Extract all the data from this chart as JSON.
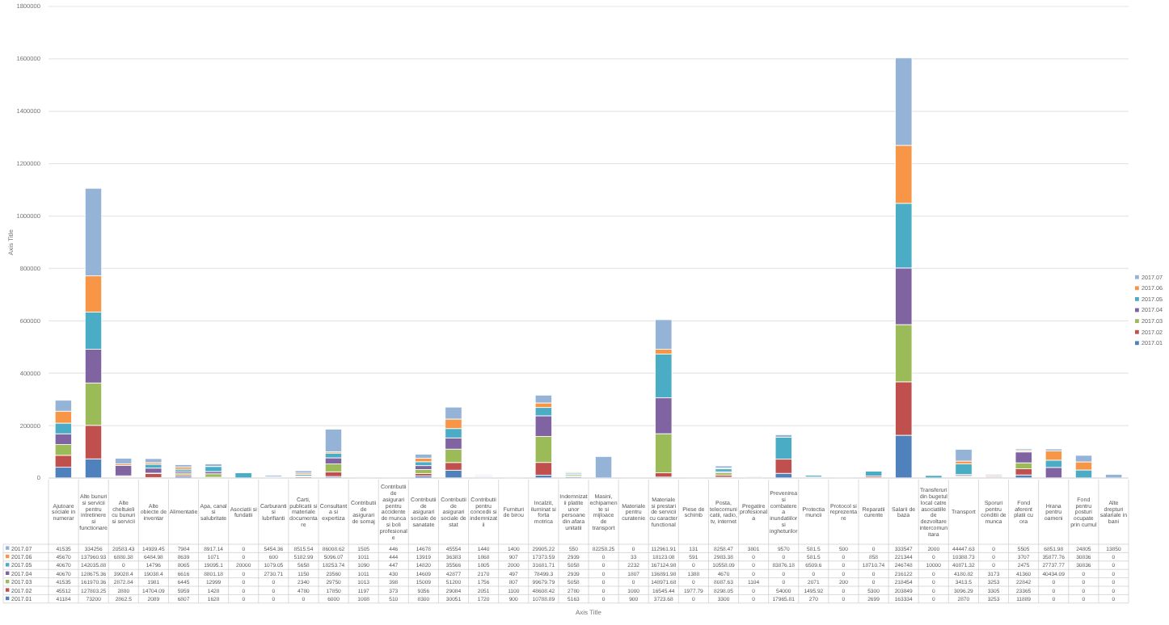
{
  "chart_data": {
    "type": "bar",
    "stacked": true,
    "ylabel": "Axis Title",
    "annotations": [
      "Axis Title"
    ],
    "ylim": [
      0,
      1800000
    ],
    "yticks": [
      0,
      200000,
      400000,
      600000,
      800000,
      1000000,
      1200000,
      1400000,
      1600000,
      1800000
    ],
    "grid": "y",
    "legend": "right",
    "data_labels": true,
    "categories": [
      "Ajutoare sociale in numerar",
      "Alte bunuri si servicii pentru intretinere si functionare",
      "Alte cheltuieli cu bunuri si servicii",
      "Alte obiecte de inventar",
      "Alimentatie",
      "Apa, canal si salubritate",
      "Asociatii si fundatii",
      "Carburanti si lubrifianti",
      "Carti, publicatii si materiale documentare",
      "Consultanta si expertiza",
      "Contributii de asigurari de somaj",
      "Contributii de asigurari pentru accidente de munca si boli profesionale",
      "Contributii de asigurari sociale de sanatate",
      "Contributii de asigurari sociale de stat",
      "Contributii pentru concedii si indemnizatii",
      "Furnituri de birou",
      "Incalzit, iluminat si forta motrica",
      "Indemnizatii platite unor persoane din afara unitatii",
      "Masini, echipamente si mijloace de transport",
      "Materiale pentru curatenie",
      "Materiale si prestari de servicii cu caracter functional",
      "Piese de schimb",
      "Posta, telecomunicatii, radio, tv, internet",
      "Pregatire profesionala",
      "Prevenirea si combaterea inundatiilor si ingheturilor",
      "Protectia muncii",
      "Protocol si reprezentare",
      "Reparatii curente",
      "Salarii de baza",
      "Transferuri din bugetul local catre asociatiile de dezvoltare intercomunitara",
      "Transport",
      "Sporuri pentru conditii de munca",
      "Fond aferent platii cu ora",
      "Hrana pentru oameni",
      "Fond pentru posturi ocupate prin cumul",
      "Alte drepturi salariale in bani"
    ],
    "series": [
      {
        "name": "2017.01",
        "color": "#4f81bd",
        "values": [
          41184,
          73200,
          2862.5,
          2089,
          6807,
          1628,
          0,
          0,
          0,
          6000,
          1008,
          510,
          8300,
          30051,
          1720,
          900,
          10788.89,
          5163,
          0,
          900,
          3723.68,
          0,
          3300,
          0,
          17965.81,
          270,
          0,
          2699,
          163334,
          0,
          2870,
          3253,
          11889,
          0,
          0,
          0
        ]
      },
      {
        "name": "2017.02",
        "color": "#c0504d",
        "values": [
          45512,
          127803.25,
          2880,
          14704.09,
          5959,
          1428,
          0,
          0,
          4780,
          17850,
          1197,
          373,
          9356,
          29084,
          2051,
          1100,
          48608.42,
          2780,
          0,
          1000,
          16545.44,
          1977.79,
          8298.05,
          0,
          54000,
          1495.92,
          0,
          5300,
          203849,
          0,
          3096.29,
          3305,
          23365,
          0,
          0,
          0
        ]
      },
      {
        "name": "2017.03",
        "color": "#9bbb59",
        "values": [
          41535,
          161970.36,
          2872.84,
          1981,
          6445,
          12999,
          0,
          0,
          2340,
          29750,
          1013,
          398,
          15009,
          51200,
          1756,
          807,
          99679.79,
          5058,
          0,
          0,
          148971.68,
          0,
          8087.63,
          1104,
          0,
          2071,
          200,
          0,
          218454,
          0,
          3413.5,
          3253,
          22842,
          0,
          0,
          0
        ]
      },
      {
        "name": "2017.04",
        "color": "#8064a2",
        "values": [
          40670,
          128675.36,
          39028.4,
          19038.4,
          6616,
          8801.18,
          0,
          2730.71,
          1150,
          23560,
          1011,
          430,
          14609,
          42877,
          2170,
          497,
          78499.3,
          2939,
          0,
          1807,
          136891.98,
          1388,
          4670,
          0,
          0,
          0,
          0,
          0,
          216122,
          0,
          4180.82,
          3173,
          41360,
          40434.09,
          0,
          0
        ]
      },
      {
        "name": "2017.05",
        "color": "#4bacc6",
        "values": [
          40670,
          142035.88,
          0,
          14796,
          8065,
          19095.1,
          20000,
          1079.05,
          5658,
          18253.74,
          1090,
          447,
          14820,
          35566,
          1805,
          2000,
          31681.71,
          5058,
          0,
          2232,
          167124.98,
          0,
          10558.09,
          0,
          83876.18,
          6509.6,
          0,
          18710.74,
          246748,
          10000,
          40871.32,
          0,
          2475,
          27737.77,
          30836,
          0
        ]
      },
      {
        "name": "2017.06",
        "color": "#f79646",
        "values": [
          45670,
          137960.93,
          6880.38,
          6484.98,
          8639,
          1071,
          0,
          600,
          5182.99,
          5096.07,
          1011,
          444,
          13919,
          36383,
          1868,
          907,
          17373.59,
          2939,
          0,
          33,
          18123.08,
          591,
          2983.38,
          0,
          0,
          581.5,
          0,
          858,
          221344,
          0,
          10388.73,
          0,
          3707,
          35877.76,
          30836,
          0
        ]
      },
      {
        "name": "2017.07",
        "color": "#95b3d7",
        "values": [
          41535,
          334256,
          20583.43,
          14939.45,
          7984,
          8917.14,
          0,
          5454.36,
          8515.54,
          86008.62,
          1505,
          446,
          14678,
          45554,
          1440,
          1400,
          29905.22,
          550,
          82258.25,
          0,
          112961.91,
          131,
          8258.47,
          3801,
          9570,
          581.5,
          500,
          0,
          333547,
          2000,
          44447.63,
          0,
          5505,
          6851.98,
          24805,
          13850
        ]
      }
    ]
  }
}
